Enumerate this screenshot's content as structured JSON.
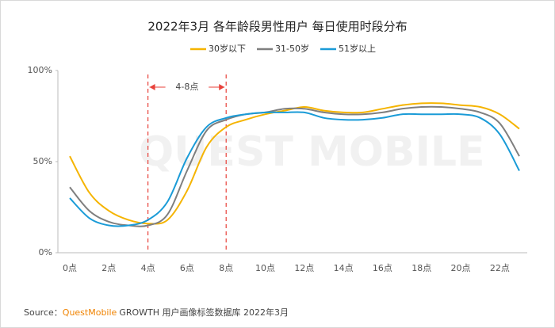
{
  "chart_data": {
    "type": "line",
    "title": "2022年3月 各年龄段男性用户 每日使用时段分布",
    "categories": [
      "0点",
      null,
      "2点",
      null,
      "4点",
      null,
      "6点",
      null,
      "8点",
      null,
      "10点",
      null,
      "12点",
      null,
      "14点",
      null,
      "16点",
      null,
      "18点",
      null,
      "20点",
      null,
      "22点",
      null
    ],
    "series": [
      {
        "name": "30岁以下",
        "color": "#f5b400",
        "values": [
          53,
          33,
          23,
          18,
          16,
          18,
          34,
          58,
          69,
          73,
          76,
          78,
          80,
          78,
          77,
          77,
          79,
          81,
          82,
          82,
          81,
          80,
          76,
          68
        ]
      },
      {
        "name": "31-50岁",
        "color": "#7f7f7f",
        "values": [
          36,
          23,
          17,
          15,
          15,
          21,
          45,
          67,
          73,
          76,
          77,
          79,
          79,
          77,
          76,
          76,
          77,
          79,
          80,
          80,
          79,
          77,
          71,
          53
        ]
      },
      {
        "name": "51岁以上",
        "color": "#1a9bd7",
        "values": [
          30,
          19,
          15,
          15,
          18,
          28,
          52,
          69,
          74,
          76,
          77,
          77,
          77,
          74,
          73,
          73,
          74,
          76,
          76,
          76,
          76,
          74,
          65,
          45
        ]
      }
    ],
    "ylim": [
      0,
      100
    ],
    "yticks": [
      {
        "value": 0,
        "label": "0%"
      },
      {
        "value": 50,
        "label": "50%"
      },
      {
        "value": 100,
        "label": "100%"
      }
    ],
    "legend": "top",
    "annotation": {
      "text": "4-8点",
      "range": [
        "4点",
        "8点"
      ],
      "color": "#e8413a"
    },
    "watermark": "QUEST MOBILE",
    "source": {
      "prefix": "Source：",
      "brand": "QuestMobile",
      "text": "GROWTH 用户画像标签数据库 2022年3月"
    }
  }
}
